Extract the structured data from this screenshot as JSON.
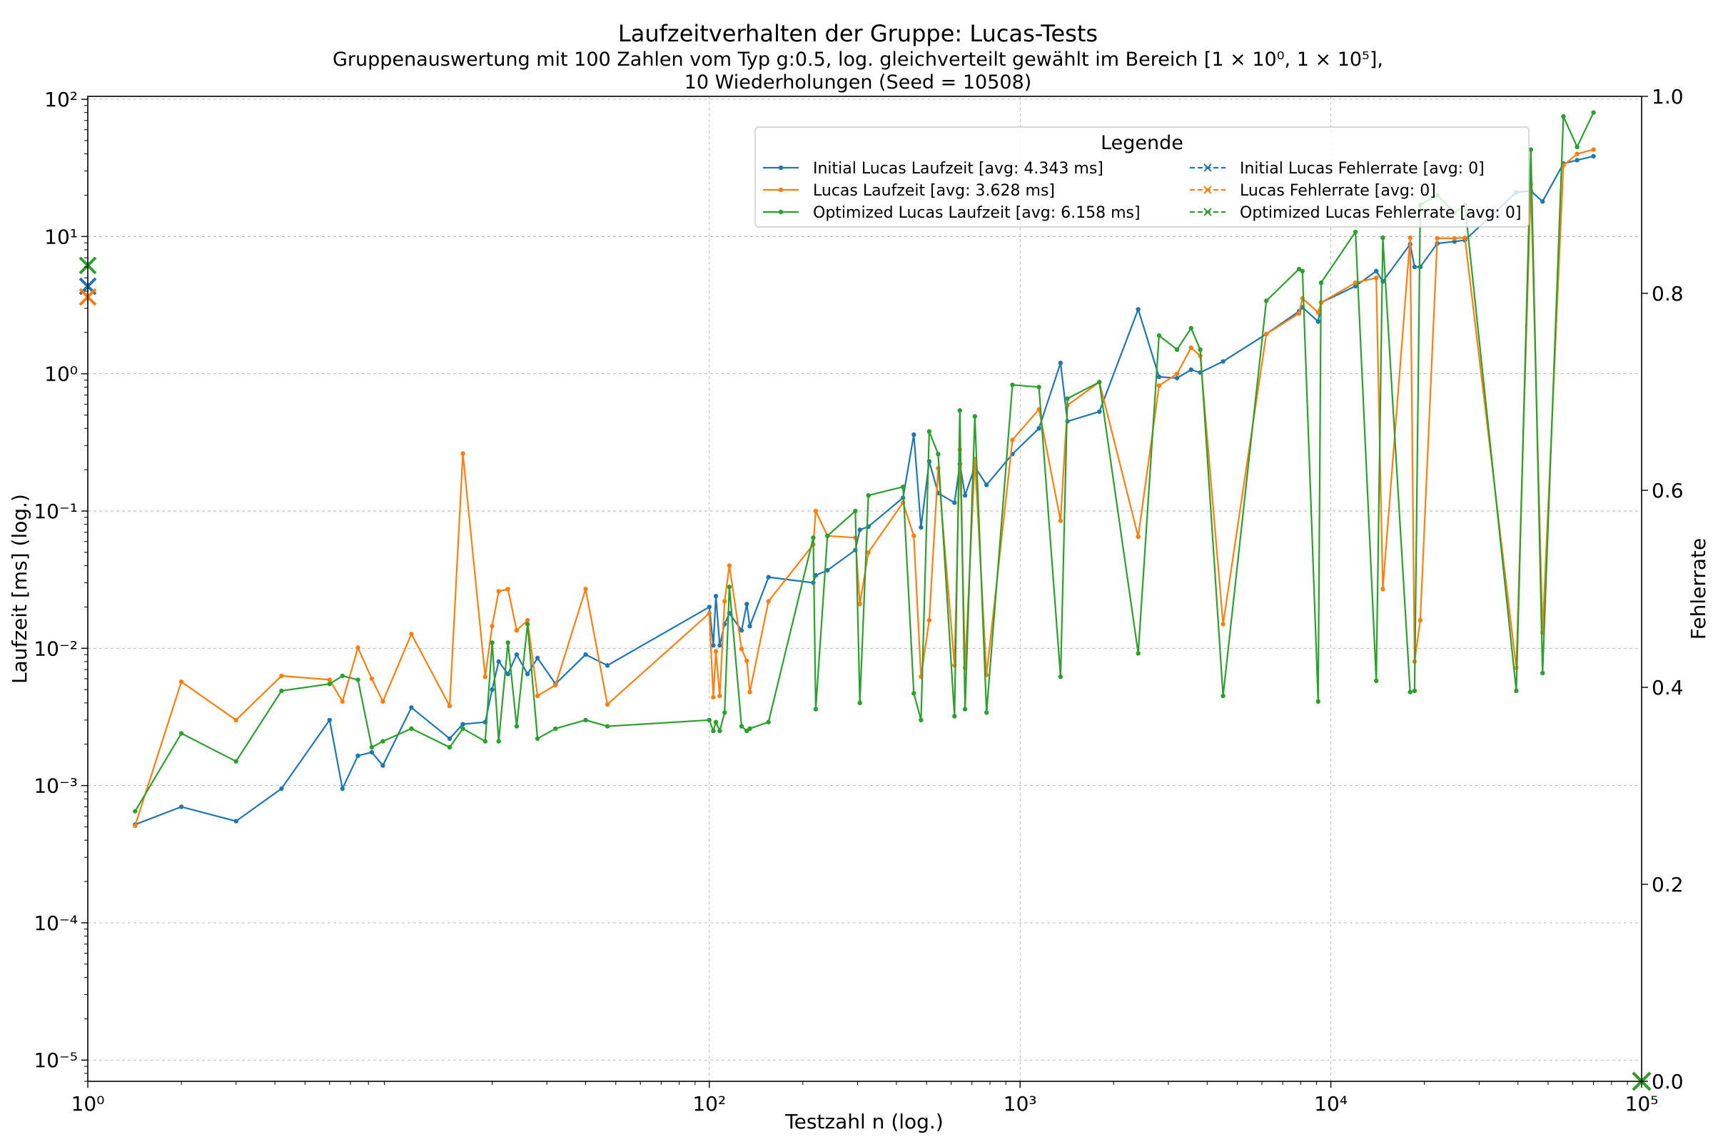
{
  "chart_data": {
    "type": "line",
    "title": "Laufzeitverhalten der Gruppe: Lucas-Tests",
    "subtitle_line1": "Gruppenauswertung mit 100 Zahlen vom Typ g:0.5, log. gleichverteilt gewählt im Bereich [1 × 10⁰, 1 × 10⁵],",
    "subtitle_line2": "10 Wiederholungen (Seed = 10508)",
    "xlabel": "Testzahl n (log.)",
    "ylabel": "Laufzeit [ms] (log.)",
    "ylabel_right": "Fehlerrate",
    "xscale": "log",
    "yscale": "log",
    "xlim": [
      1,
      100000
    ],
    "ylim": [
      7e-06,
      105
    ],
    "ylim_right": [
      0,
      1
    ],
    "grid": true,
    "x_ticks": [
      {
        "value": 1,
        "label": "10⁰"
      },
      {
        "value": 100,
        "label": "10²"
      },
      {
        "value": 1000,
        "label": "10³"
      },
      {
        "value": 10000,
        "label": "10⁴"
      },
      {
        "value": 100000,
        "label": "10⁵"
      }
    ],
    "y_ticks": [
      {
        "value": 1e-05,
        "label": "10⁻⁵"
      },
      {
        "value": 0.0001,
        "label": "10⁻⁴"
      },
      {
        "value": 0.001,
        "label": "10⁻³"
      },
      {
        "value": 0.01,
        "label": "10⁻²"
      },
      {
        "value": 0.1,
        "label": "10⁻¹"
      },
      {
        "value": 1,
        "label": "10⁰"
      },
      {
        "value": 10,
        "label": "10¹"
      },
      {
        "value": 100,
        "label": "10²"
      }
    ],
    "y_ticks_right": [
      {
        "value": 0.0,
        "label": "0.0"
      },
      {
        "value": 0.2,
        "label": "0.2"
      },
      {
        "value": 0.4,
        "label": "0.4"
      },
      {
        "value": 0.6,
        "label": "0.6"
      },
      {
        "value": 0.8,
        "label": "0.8"
      },
      {
        "value": 1.0,
        "label": "1.0"
      }
    ],
    "legend": {
      "title": "Legende",
      "placement": "top-right",
      "columns": [
        [
          "Initial Lucas Laufzeit [avg: 4.343 ms]",
          "Lucas Laufzeit [avg: 3.628 ms]",
          "Optimized Lucas Laufzeit [avg: 6.158 ms]"
        ],
        [
          "Initial Lucas Fehlerrate [avg: 0]",
          "Lucas Fehlerrate [avg: 0]",
          "Optimized Lucas Fehlerrate [avg: 0]"
        ]
      ]
    },
    "series": [
      {
        "name": "Initial Lucas Laufzeit [avg: 4.343 ms]",
        "color": "#1f77b4",
        "avg": 4.343,
        "points": [
          [
            1.42,
            0.00052
          ],
          [
            2.0,
            0.0007
          ],
          [
            3.0,
            0.00055
          ],
          [
            4.2,
            0.00095
          ],
          [
            6.0,
            0.003
          ],
          [
            6.6,
            0.00095
          ],
          [
            7.4,
            0.00165
          ],
          [
            8.2,
            0.00175
          ],
          [
            8.9,
            0.0014
          ],
          [
            11.0,
            0.0037
          ],
          [
            14.6,
            0.0022
          ],
          [
            16.1,
            0.0028
          ],
          [
            19.0,
            0.0029
          ],
          [
            20.0,
            0.005
          ],
          [
            21.0,
            0.008
          ],
          [
            22.5,
            0.0065
          ],
          [
            24.0,
            0.009
          ],
          [
            26.0,
            0.0065
          ],
          [
            28.0,
            0.0085
          ],
          [
            32.0,
            0.0055
          ],
          [
            40.0,
            0.009
          ],
          [
            47.0,
            0.0075
          ],
          [
            100.0,
            0.02
          ],
          [
            103.0,
            0.0105
          ],
          [
            105.0,
            0.024
          ],
          [
            108.0,
            0.0105
          ],
          [
            112.0,
            0.015
          ],
          [
            116.0,
            0.018
          ],
          [
            127.0,
            0.0135
          ],
          [
            132.0,
            0.021
          ],
          [
            135.0,
            0.0145
          ],
          [
            155.0,
            0.033
          ],
          [
            216.0,
            0.03
          ],
          [
            220.0,
            0.034
          ],
          [
            240.0,
            0.037
          ],
          [
            295.0,
            0.052
          ],
          [
            305.0,
            0.073
          ],
          [
            325.0,
            0.077
          ],
          [
            420.0,
            0.125
          ],
          [
            455.0,
            0.36
          ],
          [
            480.0,
            0.076
          ],
          [
            510.0,
            0.23
          ],
          [
            545.0,
            0.135
          ],
          [
            615.0,
            0.115
          ],
          [
            640.0,
            0.22
          ],
          [
            665.0,
            0.13
          ],
          [
            715.0,
            0.21
          ],
          [
            780.0,
            0.155
          ],
          [
            945.0,
            0.26
          ],
          [
            1150.0,
            0.4
          ],
          [
            1350.0,
            1.2
          ],
          [
            1420.0,
            0.45
          ],
          [
            1800.0,
            0.53
          ],
          [
            2400.0,
            2.95
          ],
          [
            2800.0,
            0.95
          ],
          [
            3200.0,
            0.93
          ],
          [
            3550.0,
            1.07
          ],
          [
            3800.0,
            1.02
          ],
          [
            4500.0,
            1.23
          ],
          [
            6200.0,
            1.95
          ],
          [
            7900.0,
            2.85
          ],
          [
            8100.0,
            3.05
          ],
          [
            9100.0,
            2.4
          ],
          [
            9300.0,
            3.3
          ],
          [
            12000.0,
            4.35
          ],
          [
            14000.0,
            5.6
          ],
          [
            14700.0,
            4.7
          ],
          [
            18000.0,
            8.8
          ],
          [
            18600.0,
            6.0
          ],
          [
            19400.0,
            6.0
          ],
          [
            22000.0,
            8.9
          ],
          [
            25000.0,
            9.2
          ],
          [
            27000.0,
            9.4
          ],
          [
            39500.0,
            21.0
          ],
          [
            44000.0,
            21.5
          ],
          [
            48000.0,
            18.0
          ],
          [
            56000.0,
            34.0
          ],
          [
            62000.0,
            36.0
          ],
          [
            70000.0,
            38.5
          ]
        ]
      },
      {
        "name": "Lucas Laufzeit [avg: 3.628 ms]",
        "color": "#ff7f0e",
        "avg": 3.628,
        "points": [
          [
            1.42,
            0.00051
          ],
          [
            2.0,
            0.0057
          ],
          [
            3.0,
            0.003
          ],
          [
            4.2,
            0.0063
          ],
          [
            6.0,
            0.0059
          ],
          [
            6.6,
            0.0041
          ],
          [
            7.4,
            0.0101
          ],
          [
            8.2,
            0.006
          ],
          [
            8.9,
            0.0041
          ],
          [
            11.0,
            0.0127
          ],
          [
            14.6,
            0.0038
          ],
          [
            16.1,
            0.262
          ],
          [
            19.0,
            0.0062
          ],
          [
            20.0,
            0.0145
          ],
          [
            21.0,
            0.026
          ],
          [
            22.5,
            0.027
          ],
          [
            24.0,
            0.0135
          ],
          [
            26.0,
            0.016
          ],
          [
            28.0,
            0.0045
          ],
          [
            32.0,
            0.0054
          ],
          [
            40.0,
            0.027
          ],
          [
            47.0,
            0.0039
          ],
          [
            100.0,
            0.018
          ],
          [
            103.0,
            0.0044
          ],
          [
            105.0,
            0.0095
          ],
          [
            108.0,
            0.0045
          ],
          [
            112.0,
            0.022
          ],
          [
            116.0,
            0.04
          ],
          [
            127.0,
            0.0099
          ],
          [
            132.0,
            0.0081
          ],
          [
            135.0,
            0.0048
          ],
          [
            155.0,
            0.022
          ],
          [
            216.0,
            0.057
          ],
          [
            220.0,
            0.1
          ],
          [
            240.0,
            0.066
          ],
          [
            295.0,
            0.064
          ],
          [
            305.0,
            0.021
          ],
          [
            325.0,
            0.05
          ],
          [
            420.0,
            0.115
          ],
          [
            455.0,
            0.066
          ],
          [
            480.0,
            0.0062
          ],
          [
            510.0,
            0.016
          ],
          [
            545.0,
            0.205
          ],
          [
            615.0,
            0.0075
          ],
          [
            640.0,
            0.28
          ],
          [
            665.0,
            0.0072
          ],
          [
            715.0,
            0.24
          ],
          [
            780.0,
            0.0064
          ],
          [
            945.0,
            0.33
          ],
          [
            1150.0,
            0.55
          ],
          [
            1350.0,
            0.085
          ],
          [
            1420.0,
            0.59
          ],
          [
            1800.0,
            0.87
          ],
          [
            2400.0,
            0.065
          ],
          [
            2800.0,
            0.82
          ],
          [
            3200.0,
            1.0
          ],
          [
            3550.0,
            1.55
          ],
          [
            3800.0,
            1.35
          ],
          [
            4500.0,
            0.015
          ],
          [
            6200.0,
            1.95
          ],
          [
            7900.0,
            2.75
          ],
          [
            8100.0,
            3.55
          ],
          [
            9100.0,
            2.8
          ],
          [
            9300.0,
            3.3
          ],
          [
            12000.0,
            4.6
          ],
          [
            14000.0,
            5.0
          ],
          [
            14700.0,
            0.027
          ],
          [
            18000.0,
            9.8
          ],
          [
            18600.0,
            0.008
          ],
          [
            19400.0,
            0.016
          ],
          [
            22000.0,
            9.7
          ],
          [
            25000.0,
            9.7
          ],
          [
            27000.0,
            9.8
          ],
          [
            39500.0,
            0.0072
          ],
          [
            44000.0,
            24.0
          ],
          [
            48000.0,
            0.013
          ],
          [
            56000.0,
            33.0
          ],
          [
            62000.0,
            40.0
          ],
          [
            70000.0,
            43.0
          ]
        ]
      },
      {
        "name": "Optimized Lucas Laufzeit [avg: 6.158 ms]",
        "color": "#2ca02c",
        "avg": 6.158,
        "points": [
          [
            1.42,
            0.00065
          ],
          [
            2.0,
            0.0024
          ],
          [
            3.0,
            0.0015
          ],
          [
            4.2,
            0.0049
          ],
          [
            6.0,
            0.0055
          ],
          [
            6.6,
            0.0063
          ],
          [
            7.4,
            0.0059
          ],
          [
            8.2,
            0.0019
          ],
          [
            8.9,
            0.0021
          ],
          [
            11.0,
            0.0026
          ],
          [
            14.6,
            0.0019
          ],
          [
            16.1,
            0.0026
          ],
          [
            19.0,
            0.0021
          ],
          [
            20.0,
            0.011
          ],
          [
            21.0,
            0.0021
          ],
          [
            22.5,
            0.011
          ],
          [
            24.0,
            0.0027
          ],
          [
            26.0,
            0.015
          ],
          [
            28.0,
            0.0022
          ],
          [
            32.0,
            0.0026
          ],
          [
            40.0,
            0.003
          ],
          [
            47.0,
            0.0027
          ],
          [
            100.0,
            0.003
          ],
          [
            103.0,
            0.0025
          ],
          [
            105.0,
            0.0029
          ],
          [
            108.0,
            0.0025
          ],
          [
            112.0,
            0.0034
          ],
          [
            116.0,
            0.028
          ],
          [
            127.0,
            0.0027
          ],
          [
            132.0,
            0.0025
          ],
          [
            135.0,
            0.0026
          ],
          [
            155.0,
            0.0029
          ],
          [
            216.0,
            0.064
          ],
          [
            220.0,
            0.0036
          ],
          [
            240.0,
            0.066
          ],
          [
            295.0,
            0.1
          ],
          [
            305.0,
            0.004
          ],
          [
            325.0,
            0.13
          ],
          [
            420.0,
            0.15
          ],
          [
            455.0,
            0.0047
          ],
          [
            480.0,
            0.003
          ],
          [
            510.0,
            0.38
          ],
          [
            545.0,
            0.26
          ],
          [
            615.0,
            0.0032
          ],
          [
            640.0,
            0.54
          ],
          [
            665.0,
            0.0036
          ],
          [
            715.0,
            0.49
          ],
          [
            780.0,
            0.0034
          ],
          [
            945.0,
            0.83
          ],
          [
            1150.0,
            0.8
          ],
          [
            1350.0,
            0.0062
          ],
          [
            1420.0,
            0.66
          ],
          [
            1800.0,
            0.87
          ],
          [
            2400.0,
            0.0092
          ],
          [
            2800.0,
            1.9
          ],
          [
            3200.0,
            1.5
          ],
          [
            3550.0,
            2.15
          ],
          [
            3800.0,
            1.5
          ],
          [
            4500.0,
            0.0045
          ],
          [
            6200.0,
            3.4
          ],
          [
            7900.0,
            5.8
          ],
          [
            8100.0,
            5.6
          ],
          [
            9100.0,
            0.0041
          ],
          [
            9300.0,
            4.6
          ],
          [
            12000.0,
            10.8
          ],
          [
            14000.0,
            0.0058
          ],
          [
            14700.0,
            9.8
          ],
          [
            18000.0,
            0.0048
          ],
          [
            18600.0,
            0.0049
          ],
          [
            19400.0,
            17.0
          ],
          [
            22000.0,
            20.0
          ],
          [
            25000.0,
            15.0
          ],
          [
            27000.0,
            17.0
          ],
          [
            39500.0,
            0.0049
          ],
          [
            44000.0,
            43.0
          ],
          [
            48000.0,
            0.0066
          ],
          [
            56000.0,
            75.0
          ],
          [
            62000.0,
            45.0
          ],
          [
            70000.0,
            80.0
          ]
        ]
      }
    ],
    "error_series": [
      {
        "name": "Initial Lucas Fehlerrate [avg: 0]",
        "color": "#1f77b4",
        "avg": 0
      },
      {
        "name": "Lucas Fehlerrate [avg: 0]",
        "color": "#ff7f0e",
        "avg": 0
      },
      {
        "name": "Optimized Lucas Fehlerrate [avg: 0]",
        "color": "#2ca02c",
        "avg": 0
      }
    ]
  }
}
